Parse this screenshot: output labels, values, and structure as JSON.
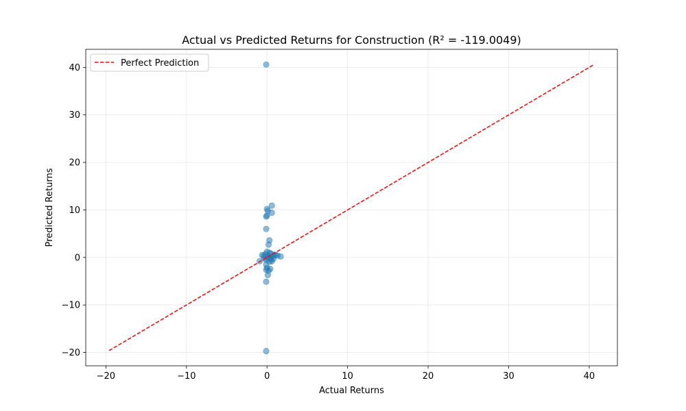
{
  "chart_data": {
    "type": "scatter",
    "title": "Actual vs Predicted Returns for Construction (R² = -119.0049)",
    "xlabel": "Actual Returns",
    "ylabel": "Predicted Returns",
    "xlim": [
      -22.5,
      43.5
    ],
    "ylim": [
      -22.8,
      43.8
    ],
    "xticks": [
      -20,
      -10,
      0,
      10,
      20,
      30,
      40
    ],
    "yticks": [
      -20,
      -10,
      0,
      10,
      20,
      30,
      40
    ],
    "grid": true,
    "legend": {
      "placement": "top-left",
      "entries": [
        {
          "label": "Perfect Prediction",
          "color": "#ff0000",
          "style": "dashed"
        }
      ]
    },
    "reference_line": {
      "name": "Perfect Prediction",
      "x": [
        -19.6,
        40.6
      ],
      "y": [
        -19.6,
        40.6
      ],
      "color": "#ff0000"
    },
    "series": [
      {
        "color": "#1f77b4",
        "alpha": 0.5,
        "points": [
          {
            "x": -0.1,
            "y": 40.6
          },
          {
            "x": 0.6,
            "y": 10.9
          },
          {
            "x": 0.0,
            "y": 10.2
          },
          {
            "x": 0.1,
            "y": 9.8
          },
          {
            "x": 0.6,
            "y": 9.4
          },
          {
            "x": -0.1,
            "y": 8.6
          },
          {
            "x": 0.0,
            "y": 8.8
          },
          {
            "x": -0.1,
            "y": 6.0
          },
          {
            "x": 0.3,
            "y": 3.6
          },
          {
            "x": 0.2,
            "y": 2.7
          },
          {
            "x": 0.0,
            "y": 1.2
          },
          {
            "x": 0.3,
            "y": 1.0
          },
          {
            "x": 0.5,
            "y": 0.8
          },
          {
            "x": 0.9,
            "y": 0.6
          },
          {
            "x": 1.1,
            "y": 0.5
          },
          {
            "x": 1.3,
            "y": 0.4
          },
          {
            "x": 1.7,
            "y": 0.2
          },
          {
            "x": -0.6,
            "y": 0.5
          },
          {
            "x": -0.4,
            "y": 0.3
          },
          {
            "x": -0.2,
            "y": 0.7
          },
          {
            "x": 0.1,
            "y": 0.3
          },
          {
            "x": 0.4,
            "y": 0.1
          },
          {
            "x": 0.7,
            "y": 0.2
          },
          {
            "x": 0.2,
            "y": -0.2
          },
          {
            "x": 0.5,
            "y": -0.4
          },
          {
            "x": 0.8,
            "y": -0.3
          },
          {
            "x": 0.6,
            "y": -0.8
          },
          {
            "x": 0.3,
            "y": -0.9
          },
          {
            "x": -0.1,
            "y": -0.5
          },
          {
            "x": -0.3,
            "y": -0.2
          },
          {
            "x": -0.9,
            "y": -0.8
          },
          {
            "x": -0.1,
            "y": -1.5
          },
          {
            "x": 0.0,
            "y": -2.2
          },
          {
            "x": -0.1,
            "y": -2.6
          },
          {
            "x": 0.2,
            "y": -2.8
          },
          {
            "x": 0.4,
            "y": -2.4
          },
          {
            "x": 0.1,
            "y": -3.7
          },
          {
            "x": -0.1,
            "y": -5.1
          },
          {
            "x": -0.1,
            "y": -19.7
          }
        ]
      }
    ]
  }
}
